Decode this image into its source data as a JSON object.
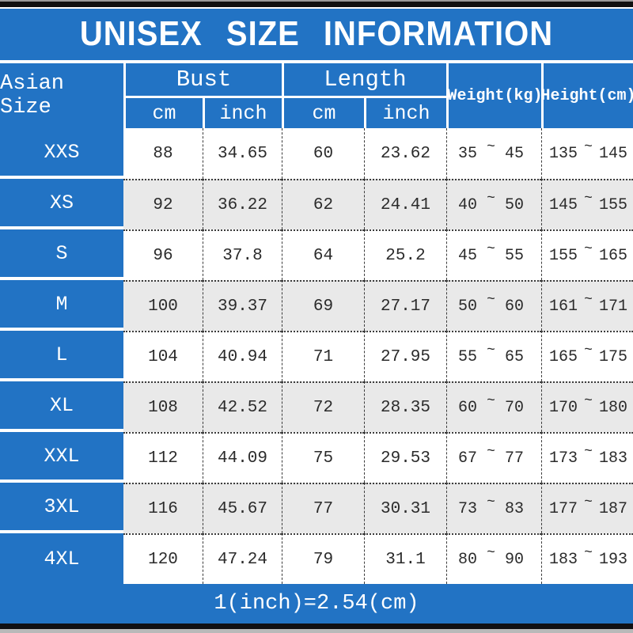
{
  "title": "UNISEX SIZE INFORMATION",
  "header": {
    "asian_size": "Asian Size",
    "bust": "Bust",
    "length": "Length",
    "cm": "cm",
    "inch": "inch",
    "weight": "Weight(kg)",
    "height": "Height(cm)",
    "tilde": "~"
  },
  "footer_note": "1(inch)=2.54(cm)",
  "colors": {
    "accent_blue": "#2273c4",
    "row_stripe": "#e9e9e9",
    "grid_line_dark": "#3c3c3c",
    "frame_black": "#101010",
    "text_dark": "#2b2b2b",
    "header_text": "#ffffff"
  },
  "chart_data": {
    "type": "table",
    "title": "UNISEX SIZE INFORMATION",
    "column_groups": [
      {
        "label": "Bust",
        "sub": [
          "cm",
          "inch"
        ]
      },
      {
        "label": "Length",
        "sub": [
          "cm",
          "inch"
        ]
      }
    ],
    "columns": [
      "Asian Size",
      "Bust cm",
      "Bust inch",
      "Length cm",
      "Length inch",
      "Weight(kg)",
      "Height(cm)"
    ],
    "rows": [
      {
        "size": "XXS",
        "bust_cm": "88",
        "bust_inch": "34.65",
        "length_cm": "60",
        "length_inch": "23.62",
        "weight_min": "35",
        "weight_max": "45",
        "height_min": "135",
        "height_max": "145"
      },
      {
        "size": "XS",
        "bust_cm": "92",
        "bust_inch": "36.22",
        "length_cm": "62",
        "length_inch": "24.41",
        "weight_min": "40",
        "weight_max": "50",
        "height_min": "145",
        "height_max": "155"
      },
      {
        "size": "S",
        "bust_cm": "96",
        "bust_inch": "37.8",
        "length_cm": "64",
        "length_inch": "25.2",
        "weight_min": "45",
        "weight_max": "55",
        "height_min": "155",
        "height_max": "165"
      },
      {
        "size": "M",
        "bust_cm": "100",
        "bust_inch": "39.37",
        "length_cm": "69",
        "length_inch": "27.17",
        "weight_min": "50",
        "weight_max": "60",
        "height_min": "161",
        "height_max": "171"
      },
      {
        "size": "L",
        "bust_cm": "104",
        "bust_inch": "40.94",
        "length_cm": "71",
        "length_inch": "27.95",
        "weight_min": "55",
        "weight_max": "65",
        "height_min": "165",
        "height_max": "175"
      },
      {
        "size": "XL",
        "bust_cm": "108",
        "bust_inch": "42.52",
        "length_cm": "72",
        "length_inch": "28.35",
        "weight_min": "60",
        "weight_max": "70",
        "height_min": "170",
        "height_max": "180"
      },
      {
        "size": "XXL",
        "bust_cm": "112",
        "bust_inch": "44.09",
        "length_cm": "75",
        "length_inch": "29.53",
        "weight_min": "67",
        "weight_max": "77",
        "height_min": "173",
        "height_max": "183"
      },
      {
        "size": "3XL",
        "bust_cm": "116",
        "bust_inch": "45.67",
        "length_cm": "77",
        "length_inch": "30.31",
        "weight_min": "73",
        "weight_max": "83",
        "height_min": "177",
        "height_max": "187"
      },
      {
        "size": "4XL",
        "bust_cm": "120",
        "bust_inch": "47.24",
        "length_cm": "79",
        "length_inch": "31.1",
        "weight_min": "80",
        "weight_max": "90",
        "height_min": "183",
        "height_max": "193"
      }
    ]
  }
}
